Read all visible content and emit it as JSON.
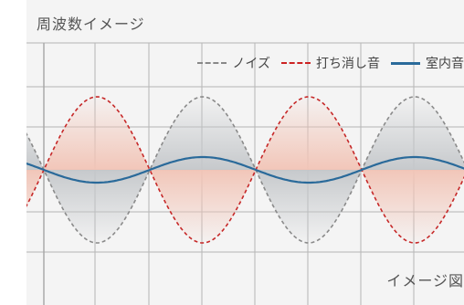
{
  "title": "周波数イメージ",
  "legend": [
    {
      "label": "ノイズ",
      "style": "dashed",
      "color": "#8a8a8a"
    },
    {
      "label": "打ち消し音",
      "style": "dashed",
      "color": "#c62828"
    },
    {
      "label": "室内音",
      "style": "solid",
      "color": "#2a6a9a"
    }
  ],
  "caption": "イメージ図",
  "colors": {
    "panel": "#f4f4f4",
    "grid": "#9a9a9a",
    "noise": "#8a8a8a",
    "cancel": "#c62828",
    "room": "#2a6a9a",
    "noise_fill": "#bfc3c7",
    "cancel_fill": "#f2c4b6"
  }
}
